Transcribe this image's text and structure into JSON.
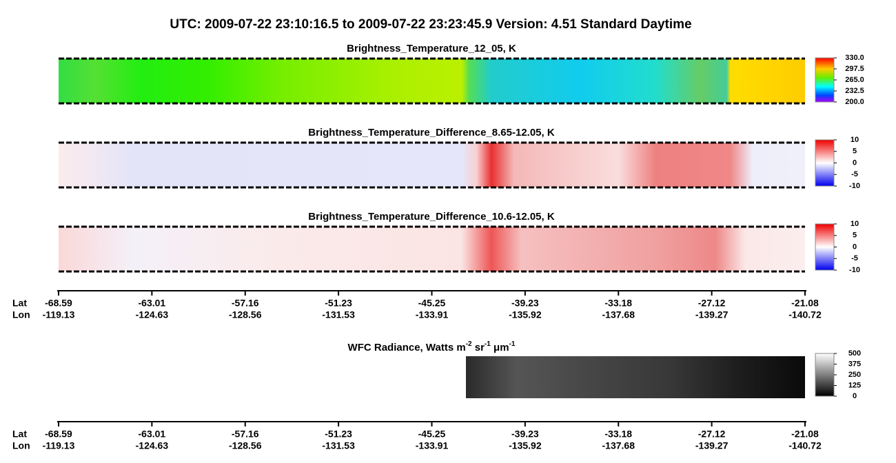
{
  "title": "UTC:  2009-07-22   23:10:16.5  to  2009-07-22   23:23:45.9    Version: 4.51  Standard Daytime",
  "panels": [
    {
      "title": "Brightness_Temperature_12_05, K",
      "colorbar_ticks": [
        {
          "value": 330,
          "label": "330.0"
        },
        {
          "value": 297.5,
          "label": "297.5"
        },
        {
          "value": 265,
          "label": "265.0"
        },
        {
          "value": 232.5,
          "label": "232.5"
        },
        {
          "value": 200,
          "label": "200.0"
        }
      ]
    },
    {
      "title": "Brightness_Temperature_Difference_8.65-12.05, K",
      "colorbar_ticks": [
        10,
        5,
        0,
        -5,
        -10
      ]
    },
    {
      "title": "Brightness_Temperature_Difference_10.6-12.05, K",
      "colorbar_ticks": [
        10,
        5,
        0,
        -5,
        -10
      ]
    },
    {
      "title_parts": [
        "WFC Radiance, Watts m",
        "-2",
        " sr",
        "-1",
        " μm",
        "-1"
      ],
      "colorbar_ticks": [
        500,
        375,
        250,
        125,
        0
      ]
    }
  ],
  "axes": [
    {
      "lat_label": "Lat",
      "lon_label": "Lon",
      "lat": [
        "-68.59",
        "-63.01",
        "-57.16",
        "-51.23",
        "-45.25",
        "-39.23",
        "-33.18",
        "-27.12",
        "-21.08"
      ],
      "lon": [
        "-119.13",
        "-124.63",
        "-128.56",
        "-131.53",
        "-133.91",
        "-135.92",
        "-137.68",
        "-139.27",
        "-140.72"
      ]
    },
    {
      "lat_label": "Lat",
      "lon_label": "Lon",
      "lat": [
        "-68.59",
        "-63.01",
        "-57.16",
        "-51.23",
        "-45.25",
        "-39.23",
        "-33.18",
        "-27.12",
        "-21.08"
      ],
      "lon": [
        "-119.13",
        "-124.63",
        "-128.56",
        "-131.53",
        "-133.91",
        "-135.92",
        "-137.68",
        "-139.27",
        "-140.72"
      ]
    }
  ]
}
